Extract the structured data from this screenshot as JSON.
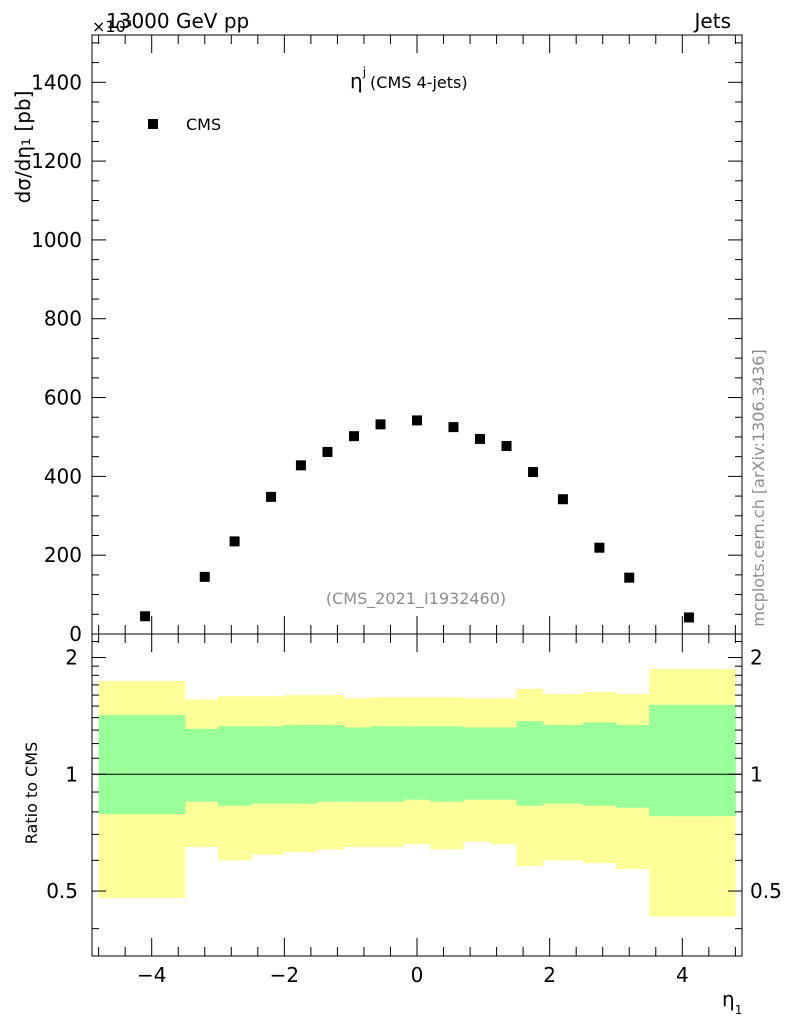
{
  "header": {
    "left": "13000 GeV pp",
    "right": "Jets",
    "exponent": "×10³"
  },
  "side_label": "mcplots.cern.ch [arXiv:1306.3436]",
  "chart_data": [
    {
      "type": "scatter",
      "title": "ηʲ (CMS 4-jets)",
      "title_main": "η",
      "title_sup": "j",
      "title_rest": "(CMS 4-jets)",
      "analysis": "(CMS_2021_I1932460)",
      "ylabel": "dσ/dη₁ [pb]",
      "y_scale_factor": 1000,
      "xlim": [
        -4.9,
        4.9
      ],
      "ylim": [
        0,
        1520
      ],
      "x_ticks": [
        -4,
        -2,
        0,
        2,
        4
      ],
      "x_tick_labels": [
        "−4",
        "−2",
        "0",
        "2",
        "4"
      ],
      "y_ticks": [
        0,
        200,
        400,
        600,
        800,
        1000,
        1200,
        1400
      ],
      "y_tick_labels": [
        "0",
        "200",
        "400",
        "600",
        "800",
        "1000",
        "1200",
        "1400"
      ],
      "legend": {
        "placement": "top-left",
        "entries": [
          "CMS"
        ]
      },
      "series": [
        {
          "name": "CMS",
          "marker": "square",
          "color": "#000000",
          "x": [
            -4.1,
            -3.2,
            -2.75,
            -2.2,
            -1.75,
            -1.35,
            -0.95,
            -0.55,
            0.0,
            0.55,
            0.95,
            1.35,
            1.75,
            2.2,
            2.75,
            3.2,
            4.1
          ],
          "y": [
            45,
            145,
            235,
            348,
            428,
            462,
            502,
            532,
            542,
            525,
            495,
            477,
            411,
            342,
            219,
            143,
            42
          ]
        }
      ]
    },
    {
      "type": "area",
      "ylabel": "Ratio to CMS",
      "xlabel": "η₁",
      "xlim": [
        -4.9,
        4.9
      ],
      "ylim": [
        0.34,
        2.3
      ],
      "y_ticks": [
        0.5,
        1,
        2
      ],
      "y_tick_labels": [
        "0.5",
        "1",
        "2"
      ],
      "reference_line": 1,
      "bins": [
        -4.8,
        -3.5,
        -3.0,
        -2.5,
        -2.0,
        -1.5,
        -1.1,
        -0.7,
        -0.2,
        0.2,
        0.7,
        1.1,
        1.5,
        1.9,
        2.5,
        3.0,
        3.5,
        4.8
      ],
      "bands": [
        {
          "name": "yellow",
          "color": "#ffff99",
          "lo": [
            0.48,
            0.65,
            0.6,
            0.62,
            0.63,
            0.64,
            0.65,
            0.65,
            0.66,
            0.64,
            0.67,
            0.66,
            0.58,
            0.6,
            0.59,
            0.57,
            0.43
          ],
          "hi": [
            1.74,
            1.56,
            1.59,
            1.59,
            1.6,
            1.6,
            1.57,
            1.58,
            1.58,
            1.58,
            1.57,
            1.57,
            1.66,
            1.61,
            1.63,
            1.61,
            1.87
          ]
        },
        {
          "name": "green",
          "color": "#99ff99",
          "lo": [
            0.79,
            0.85,
            0.83,
            0.84,
            0.84,
            0.85,
            0.85,
            0.85,
            0.86,
            0.85,
            0.86,
            0.86,
            0.83,
            0.84,
            0.83,
            0.82,
            0.78
          ],
          "hi": [
            1.42,
            1.31,
            1.33,
            1.33,
            1.34,
            1.34,
            1.32,
            1.33,
            1.33,
            1.33,
            1.32,
            1.32,
            1.37,
            1.34,
            1.36,
            1.34,
            1.51
          ]
        }
      ]
    }
  ]
}
